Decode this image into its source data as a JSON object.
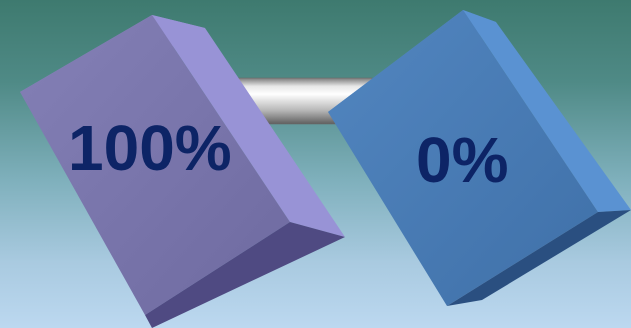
{
  "diagram": {
    "left_block": {
      "label": "100%",
      "colors": {
        "front": "#7c78ae",
        "right_side": "#9893d6",
        "top": "#8f8ac9",
        "bottom": "#4f4a82"
      }
    },
    "right_block": {
      "label": "0%",
      "colors": {
        "front": "#4a7db8",
        "right_side": "#5a92d2",
        "top": "#4f88c6",
        "bottom": "#2a4f80"
      }
    },
    "connector": {
      "colors": {
        "highlight": "#ffffff",
        "mid": "#cfcfcf",
        "shadow": "#6f6f6f"
      }
    },
    "label_color": "#0d2466"
  }
}
